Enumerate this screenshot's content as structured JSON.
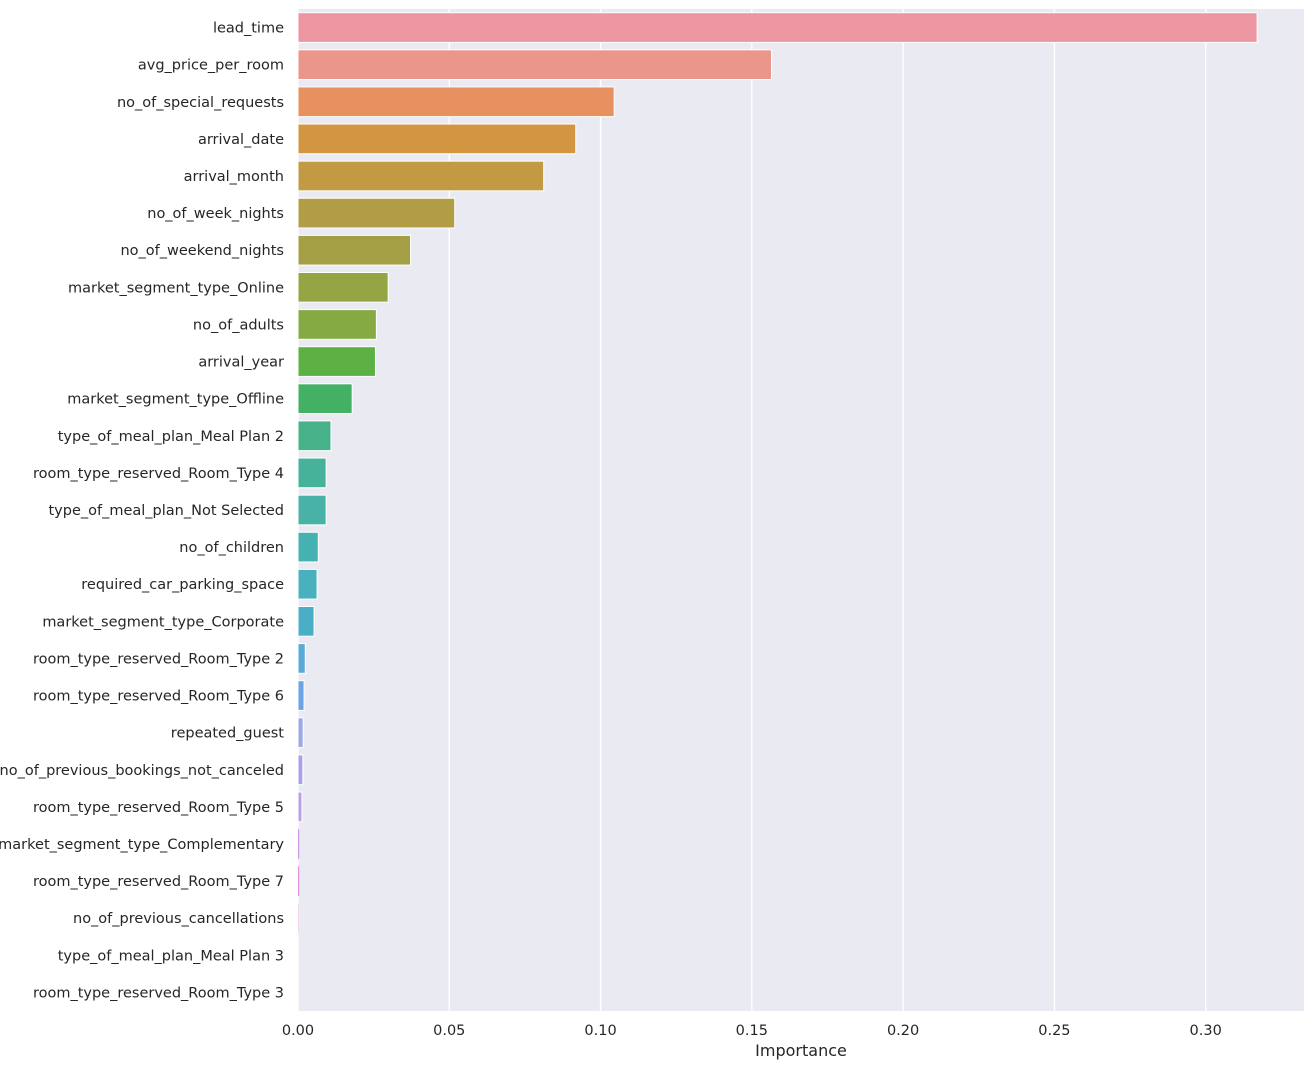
{
  "chart_data": {
    "type": "bar",
    "orientation": "horizontal",
    "xlabel": "Importance",
    "ylabel": "",
    "title": "",
    "xlim": [
      0,
      0.3325
    ],
    "xticks": [
      "0.00",
      "0.05",
      "0.10",
      "0.15",
      "0.20",
      "0.25",
      "0.30"
    ],
    "xtick_values": [
      0,
      0.05,
      0.1,
      0.15,
      0.2,
      0.25,
      0.3
    ],
    "grid": true,
    "style": "seaborn darkgrid, husl palette",
    "background_color": "#eaeaf2",
    "categories": [
      "lead_time",
      "avg_price_per_room",
      "no_of_special_requests",
      "arrival_date",
      "arrival_month",
      "no_of_week_nights",
      "no_of_weekend_nights",
      "market_segment_type_Online",
      "no_of_adults",
      "arrival_year",
      "market_segment_type_Offline",
      "type_of_meal_plan_Meal Plan 2",
      "room_type_reserved_Room_Type 4",
      "type_of_meal_plan_Not Selected",
      "no_of_children",
      "required_car_parking_space",
      "market_segment_type_Corporate",
      "room_type_reserved_Room_Type 2",
      "room_type_reserved_Room_Type 6",
      "repeated_guest",
      "no_of_previous_bookings_not_canceled",
      "room_type_reserved_Room_Type 5",
      "market_segment_type_Complementary",
      "room_type_reserved_Room_Type 7",
      "no_of_previous_cancellations",
      "type_of_meal_plan_Meal Plan 3",
      "room_type_reserved_Room_Type 3"
    ],
    "values": [
      0.317,
      0.1565,
      0.1045,
      0.0918,
      0.0812,
      0.0518,
      0.0372,
      0.0298,
      0.0259,
      0.0256,
      0.0179,
      0.0109,
      0.0093,
      0.0093,
      0.0067,
      0.0063,
      0.0053,
      0.0024,
      0.002,
      0.0017,
      0.0016,
      0.0013,
      0.0004,
      0.0004,
      0.0001,
      0.0,
      0.0
    ],
    "colors": [
      "#ec96a2",
      "#eb968b",
      "#e6915f",
      "#d39640",
      "#c29a44",
      "#b09d45",
      "#a49f45",
      "#95a543",
      "#85aa43",
      "#5db044",
      "#44b063",
      "#47b18a",
      "#47b29a",
      "#47b2a5",
      "#46b1b1",
      "#48b1bd",
      "#4aaec7",
      "#5aaad8",
      "#6aa3e6",
      "#9da8e6",
      "#ab9fe8",
      "#bb9ee8",
      "#d09ae6",
      "#e290e0",
      "#e693cf",
      "#e895b9",
      "#ea96ac"
    ]
  }
}
